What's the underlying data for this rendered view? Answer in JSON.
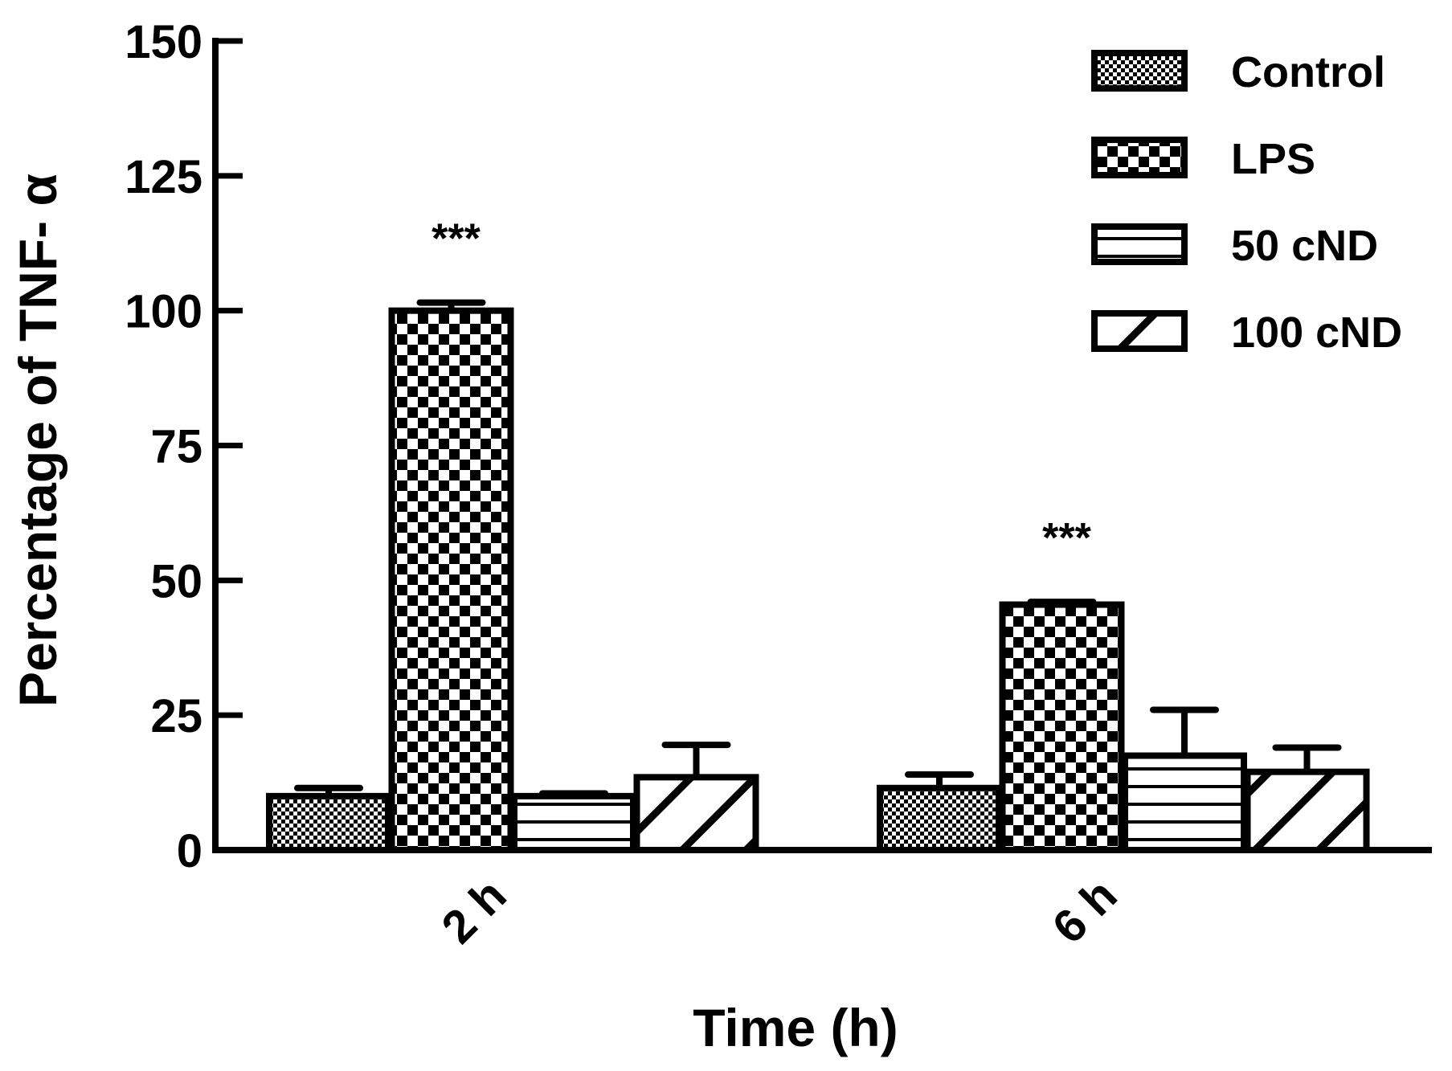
{
  "chart_data": {
    "type": "bar",
    "categories": [
      "2 h",
      "6 h"
    ],
    "series": [
      {
        "name": "Control",
        "values": [
          10,
          11.5
        ],
        "errors": [
          1.5,
          2.5
        ],
        "pattern": "fine-check"
      },
      {
        "name": "LPS",
        "values": [
          100,
          45.5
        ],
        "errors": [
          1.5,
          0.5
        ],
        "pattern": "checker"
      },
      {
        "name": "50 cND",
        "values": [
          10,
          17.5
        ],
        "errors": [
          0.5,
          8.5
        ],
        "pattern": "horizontal-lines"
      },
      {
        "name": "100 cND",
        "values": [
          13.5,
          14.5
        ],
        "errors": [
          6,
          4.5
        ],
        "pattern": "diagonal-lines"
      }
    ],
    "annotations": [
      {
        "category": "2 h",
        "series": "LPS",
        "text": "***"
      },
      {
        "category": "6 h",
        "series": "LPS",
        "text": "***"
      }
    ],
    "xlabel": "Time (h)",
    "ylabel": "Percentage of  TNF- α",
    "ylim": [
      0,
      150
    ],
    "yticks": [
      0,
      25,
      50,
      75,
      100,
      125,
      150
    ],
    "grid": false,
    "legend_position": "top-right",
    "colors": {
      "ink": "#000000",
      "background": "#ffffff"
    }
  }
}
